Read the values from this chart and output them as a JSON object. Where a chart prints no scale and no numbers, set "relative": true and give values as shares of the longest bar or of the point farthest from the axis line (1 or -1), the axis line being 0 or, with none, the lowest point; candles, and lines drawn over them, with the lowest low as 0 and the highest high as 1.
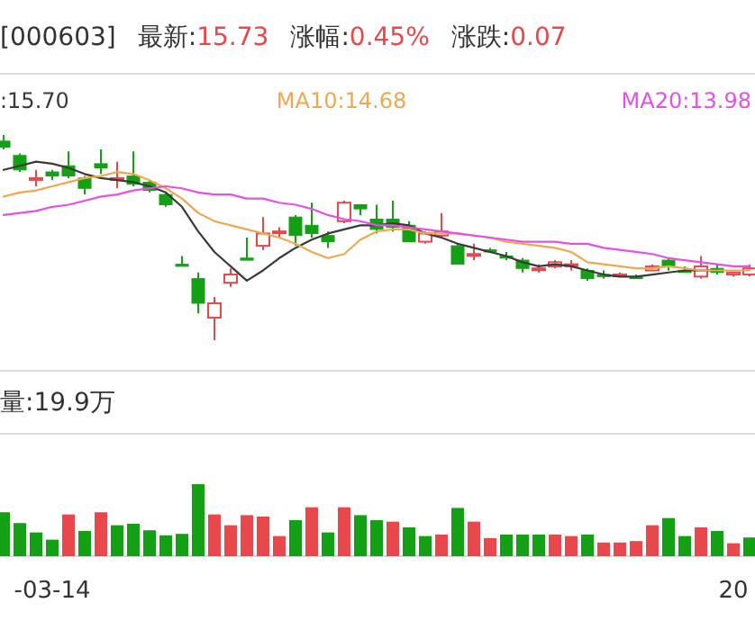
{
  "chart_data": [
    {
      "type": "candlestick",
      "title": "[000603]",
      "annotations": [
        "最新:15.73",
        "涨幅:0.45%",
        "涨跌:0.07"
      ],
      "relative": true,
      "legend": "top",
      "categories": [
        null,
        null,
        null,
        null,
        null,
        null,
        null,
        null,
        null,
        null,
        null,
        null,
        null,
        null,
        null,
        null,
        null,
        null,
        null,
        null,
        null,
        null,
        null,
        null,
        null,
        null,
        null,
        null,
        null,
        null,
        null,
        null,
        null,
        null,
        null,
        null,
        null,
        null,
        null,
        null,
        null,
        null,
        null,
        null,
        null,
        null,
        null
      ],
      "ohlc": [
        [
          0.97,
          1.0,
          0.93,
          0.94
        ],
        [
          0.9,
          0.91,
          0.82,
          0.83
        ],
        [
          0.79,
          0.83,
          0.75,
          0.79
        ],
        [
          0.82,
          0.83,
          0.78,
          0.8
        ],
        [
          0.85,
          0.92,
          0.79,
          0.8
        ],
        [
          0.79,
          0.8,
          0.71,
          0.74
        ],
        [
          0.86,
          0.93,
          0.81,
          0.84
        ],
        [
          0.79,
          0.87,
          0.74,
          0.79
        ],
        [
          0.8,
          0.92,
          0.75,
          0.76
        ],
        [
          0.77,
          0.78,
          0.72,
          0.73
        ],
        [
          0.71,
          0.72,
          0.65,
          0.66
        ],
        [
          0.37,
          0.41,
          0.36,
          0.36
        ],
        [
          0.3,
          0.33,
          0.13,
          0.18
        ],
        [
          0.11,
          0.21,
          0,
          0.18
        ],
        [
          0.28,
          0.35,
          0.26,
          0.32
        ],
        [
          0.4,
          0.5,
          0.39,
          0.39
        ],
        [
          0.46,
          0.6,
          0.44,
          0.52
        ],
        [
          0.53,
          0.55,
          0.5,
          0.53
        ],
        [
          0.6,
          0.61,
          0.46,
          0.51
        ],
        [
          0.56,
          0.67,
          0.5,
          0.52
        ],
        [
          0.51,
          0.53,
          0.45,
          0.48
        ],
        [
          0.58,
          0.68,
          0.57,
          0.67
        ],
        [
          0.66,
          0.66,
          0.61,
          0.64
        ],
        [
          0.59,
          0.66,
          0.52,
          0.54
        ],
        [
          0.59,
          0.68,
          0.53,
          0.55
        ],
        [
          0.56,
          0.58,
          0.48,
          0.48
        ],
        [
          0.48,
          0.53,
          0.47,
          0.52
        ],
        [
          0.51,
          0.62,
          0.5,
          0.53
        ],
        [
          0.46,
          0.47,
          0.37,
          0.37
        ],
        [
          0.42,
          0.47,
          0.39,
          0.42
        ],
        [
          0.44,
          0.45,
          0.43,
          0.43
        ],
        [
          0.41,
          0.43,
          0.39,
          0.4
        ],
        [
          0.39,
          0.4,
          0.33,
          0.35
        ],
        [
          0.35,
          0.37,
          0.33,
          0.35
        ],
        [
          0.36,
          0.39,
          0.35,
          0.38
        ],
        [
          0.37,
          0.39,
          0.34,
          0.37
        ],
        [
          0.34,
          0.35,
          0.29,
          0.3
        ],
        [
          0.32,
          0.34,
          0.3,
          0.31
        ],
        [
          0.32,
          0.33,
          0.31,
          0.32
        ],
        [
          0.31,
          0.32,
          0.3,
          0.3
        ],
        [
          0.34,
          0.37,
          0.34,
          0.36
        ],
        [
          0.39,
          0.4,
          0.34,
          0.36
        ],
        [
          0.34,
          0.36,
          0.33,
          0.33
        ],
        [
          0.31,
          0.41,
          0.3,
          0.36
        ],
        [
          0.35,
          0.37,
          0.32,
          0.33
        ],
        [
          0.32,
          0.33,
          0.31,
          0.33
        ],
        [
          0.32,
          0.37,
          0.31,
          0.35
        ]
      ],
      "colors": [
        "#14a014",
        "#14a014",
        "#e8474c",
        "#14a014",
        "#14a014",
        "#14a014",
        "#14a014",
        "#e8474c",
        "#14a014",
        "#14a014",
        "#14a014",
        "#14a014",
        "#14a014",
        "#e8474c",
        "#e8474c",
        "#14a014",
        "#e8474c",
        "#e8474c",
        "#14a014",
        "#14a014",
        "#14a014",
        "#e8474c",
        "#14a014",
        "#14a014",
        "#14a014",
        "#14a014",
        "#e8474c",
        "#e8474c",
        "#14a014",
        "#e8474c",
        "#14a014",
        "#14a014",
        "#14a014",
        "#e8474c",
        "#e8474c",
        "#e8474c",
        "#14a014",
        "#14a014",
        "#e8474c",
        "#14a014",
        "#e8474c",
        "#14a014",
        "#14a014",
        "#e8474c",
        "#14a014",
        "#e8474c",
        "#e8474c"
      ],
      "series": [
        {
          "type": "line",
          "name": ":15.70",
          "color": "#3a3a3a",
          "values": [
            0.83,
            0.85,
            0.87,
            0.86,
            0.84,
            0.81,
            0.79,
            0.78,
            0.77,
            0.75,
            0.72,
            0.65,
            0.53,
            0.43,
            0.36,
            0.29,
            0.34,
            0.4,
            0.45,
            0.49,
            0.52,
            0.54,
            0.56,
            0.56,
            0.57,
            0.56,
            0.52,
            0.5,
            0.47,
            0.45,
            0.43,
            0.41,
            0.38,
            0.36,
            0.37,
            0.36,
            0.34,
            0.32,
            0.31,
            0.31,
            0.32,
            0.33,
            0.34,
            0.34,
            0.34,
            null,
            null
          ]
        },
        {
          "type": "line",
          "name": "MA10:14.68",
          "color": "#f0a850",
          "values": [
            0.7,
            0.72,
            0.73,
            0.75,
            0.77,
            0.79,
            0.8,
            0.82,
            0.81,
            0.78,
            0.74,
            0.69,
            0.62,
            0.58,
            0.56,
            0.54,
            0.52,
            0.5,
            0.47,
            0.43,
            0.4,
            0.42,
            0.49,
            0.53,
            0.54,
            0.54,
            0.52,
            0.52,
            0.52,
            0.51,
            0.5,
            0.48,
            0.47,
            0.46,
            0.45,
            0.43,
            0.38,
            0.37,
            0.36,
            0.35,
            0.35,
            0.36,
            0.35,
            0.34,
            0.34,
            0.34,
            0.34
          ]
        },
        {
          "type": "line",
          "name": "MA20:13.98",
          "color": "#e650e6",
          "values": [
            0.61,
            0.62,
            0.63,
            0.65,
            0.66,
            0.68,
            0.7,
            0.71,
            0.73,
            0.74,
            0.75,
            0.74,
            0.72,
            0.71,
            0.71,
            0.69,
            0.69,
            0.67,
            0.66,
            0.64,
            0.61,
            0.59,
            0.58,
            0.56,
            0.56,
            0.55,
            0.54,
            0.53,
            0.52,
            0.51,
            0.5,
            0.49,
            0.48,
            0.48,
            0.48,
            0.47,
            0.47,
            0.45,
            0.44,
            0.43,
            0.42,
            0.4,
            0.39,
            0.38,
            0.37,
            0.36,
            0.36
          ]
        }
      ]
    },
    {
      "type": "bar",
      "title": "量:19.9万",
      "relative": true,
      "categories": [
        null,
        null,
        null,
        "-03-14",
        null,
        null,
        null,
        null,
        null,
        null,
        null,
        null,
        null,
        null,
        null,
        null,
        null,
        null,
        null,
        null,
        null,
        null,
        null,
        null,
        null,
        null,
        null,
        null,
        null,
        null,
        null,
        null,
        null,
        null,
        null,
        null,
        null,
        null,
        null,
        null,
        null,
        null,
        null,
        null,
        null,
        "20",
        null
      ],
      "values": [
        0.61,
        0.46,
        0.33,
        0.23,
        0.58,
        0.35,
        0.61,
        0.43,
        0.45,
        0.36,
        0.29,
        0.31,
        1,
        0.58,
        0.43,
        0.57,
        0.55,
        0.28,
        0.5,
        0.68,
        0.33,
        0.68,
        0.57,
        0.5,
        0.48,
        0.4,
        0.28,
        0.3,
        0.67,
        0.48,
        0.25,
        0.3,
        0.3,
        0.3,
        0.3,
        0.28,
        0.3,
        0.19,
        0.19,
        0.21,
        0.43,
        0.53,
        0.28,
        0.4,
        0.35,
        0.18,
        0.26
      ],
      "colors": [
        "#14a014",
        "#14a014",
        "#14a014",
        "#14a014",
        "#e8474c",
        "#14a014",
        "#e8474c",
        "#14a014",
        "#14a014",
        "#14a014",
        "#14a014",
        "#14a014",
        "#14a014",
        "#e8474c",
        "#e8474c",
        "#e8474c",
        "#e8474c",
        "#e8474c",
        "#14a014",
        "#e8474c",
        "#14a014",
        "#e8474c",
        "#14a014",
        "#14a014",
        "#e8474c",
        "#14a014",
        "#14a014",
        "#e8474c",
        "#14a014",
        "#e8474c",
        "#e8474c",
        "#14a014",
        "#14a014",
        "#14a014",
        "#e8474c",
        "#e8474c",
        "#14a014",
        "#e8474c",
        "#e8474c",
        "#e8474c",
        "#e8474c",
        "#14a014",
        "#14a014",
        "#e8474c",
        "#14a014",
        "#e8474c",
        "#14a014"
      ]
    }
  ]
}
